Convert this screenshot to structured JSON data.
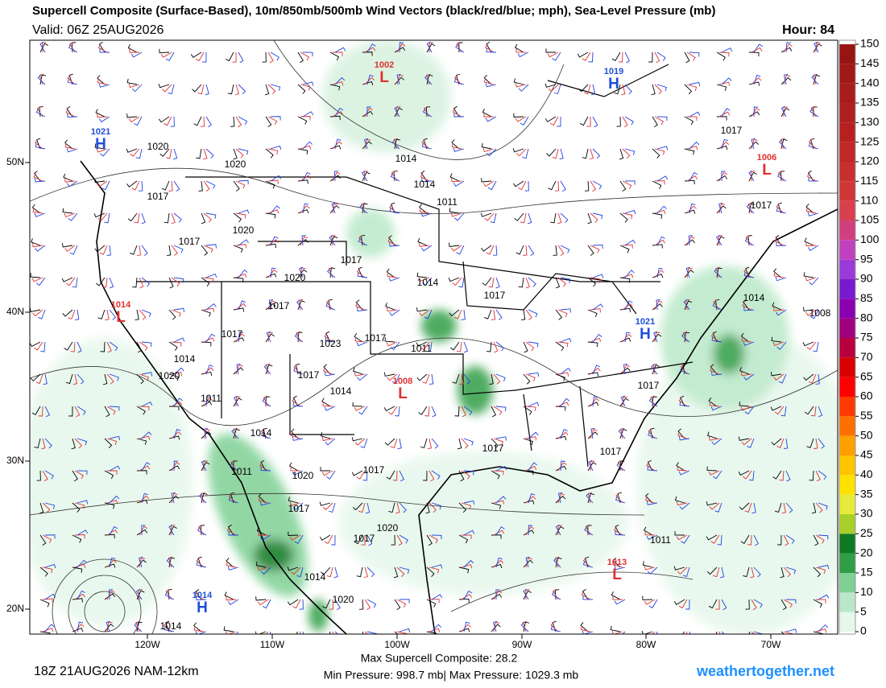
{
  "header": {
    "title": "Supercell Composite (Surface-Based), 10m/850mb/500mb Wind Vectors (black/red/blue; mph), Sea-Level Pressure (mb)",
    "valid": "Valid: 06Z 25AUG2026",
    "hour": "Hour: 84"
  },
  "map": {
    "lat_labels": [
      "50N",
      "40N",
      "30N",
      "20N"
    ],
    "lon_labels": [
      "120W",
      "110W",
      "100W",
      "90W",
      "80W",
      "70W"
    ],
    "centers": [
      {
        "kind": "H",
        "value": "1021",
        "color": "#1f4fd8"
      },
      {
        "kind": "L",
        "value": "1002",
        "color": "#e03030"
      },
      {
        "kind": "H",
        "value": "1019",
        "color": "#1f4fd8"
      },
      {
        "kind": "L",
        "value": "1006",
        "color": "#e03030"
      },
      {
        "kind": "L",
        "value": "1014",
        "color": "#e03030"
      },
      {
        "kind": "H",
        "value": "1021",
        "color": "#1f4fd8"
      },
      {
        "kind": "L",
        "value": "1008",
        "color": "#e03030"
      },
      {
        "kind": "L",
        "value": "1013",
        "color": "#e03030"
      },
      {
        "kind": "H",
        "value": "1014",
        "color": "#1f4fd8"
      }
    ],
    "isobar_labels": [
      "1020",
      "1020",
      "1017",
      "1020",
      "1017",
      "1017",
      "1020",
      "1017",
      "1017",
      "1014",
      "1017",
      "1023",
      "1017",
      "1011",
      "1014",
      "1020",
      "1011",
      "1017",
      "1014",
      "1017",
      "1014",
      "1017",
      "1008",
      "1014",
      "1017",
      "1017",
      "1014",
      "1014",
      "1011",
      "1011",
      "1014",
      "1017",
      "1017",
      "1020",
      "1017",
      "1020",
      "1014",
      "1020",
      "1017",
      "1011"
    ]
  },
  "colorbar": {
    "ticks": [
      0,
      5,
      10,
      15,
      20,
      25,
      30,
      35,
      40,
      45,
      50,
      55,
      60,
      65,
      70,
      75,
      80,
      85,
      90,
      95,
      100,
      105,
      110,
      115,
      120,
      125,
      130,
      135,
      140,
      145,
      150
    ],
    "colors": [
      "#e6f7ec",
      "#b9e8c8",
      "#7fd095",
      "#2f9e45",
      "#0f7a22",
      "#a9cf2a",
      "#e6ea3c",
      "#ffe100",
      "#ffc300",
      "#ff9f00",
      "#ff7000",
      "#ff3a00",
      "#ff0000",
      "#d80000",
      "#b80040",
      "#a00080",
      "#8a00b0",
      "#7a1ad0",
      "#9a3ad8",
      "#c040c0",
      "#d04080",
      "#d84050",
      "#d03838",
      "#c83030",
      "#c02828",
      "#b82020",
      "#b02020",
      "#a81c1c",
      "#a01818",
      "#981414"
    ]
  },
  "footer": {
    "run": "18Z 21AUG2026 NAM-12km",
    "max_scp": "Max Supercell Composite:  28.2",
    "pressure": "Min Pressure: 998.7 mb| Max Pressure: 1029.3 mb",
    "site": "weathertogether.net"
  }
}
